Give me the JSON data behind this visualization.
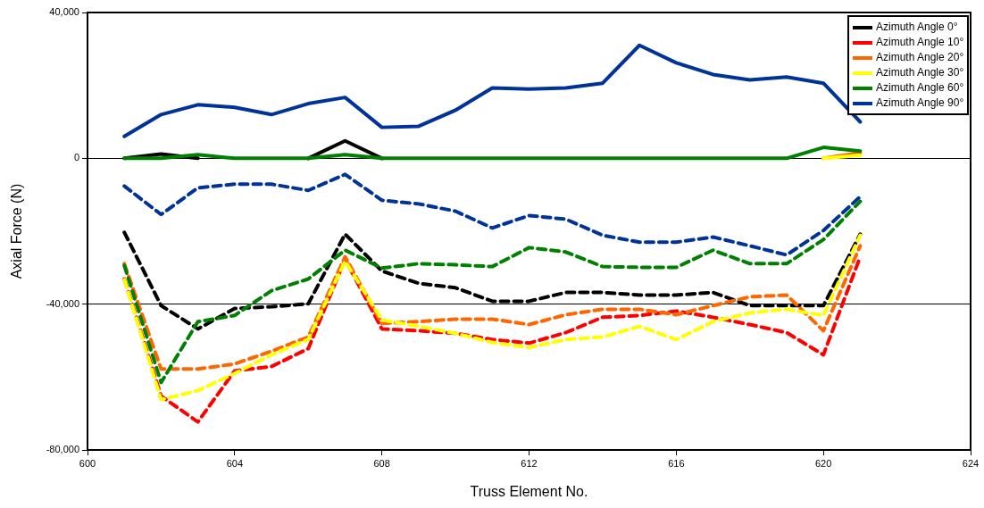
{
  "chart_data": {
    "type": "line",
    "xlabel": "Truss Element No.",
    "ylabel": "Axial Force (N)",
    "x": [
      601,
      602,
      603,
      604,
      605,
      606,
      607,
      608,
      609,
      610,
      611,
      612,
      613,
      614,
      615,
      616,
      617,
      618,
      619,
      620,
      621
    ],
    "xlim": [
      600,
      624
    ],
    "xticks": [
      600,
      604,
      608,
      612,
      616,
      620,
      624
    ],
    "ylim": [
      -80000,
      40000
    ],
    "yticks": [
      {
        "value": -80000,
        "label": "-80,000"
      },
      {
        "value": -40000,
        "label": "-40,000"
      },
      {
        "value": 0,
        "label": "0"
      },
      {
        "value": 40000,
        "label": "40,000"
      }
    ],
    "grid": "y",
    "legend": "top right",
    "marker": "none",
    "line_style": "solid",
    "series": [
      {
        "name": "Azimuth Angle 0°",
        "color": "#000000",
        "values": [
          0,
          1200,
          0,
          null,
          null,
          0,
          4800,
          0,
          null,
          null,
          null,
          null,
          null,
          null,
          null,
          null,
          null,
          null,
          null,
          null,
          null
        ]
      },
      {
        "name": "Azimuth Angle 10°",
        "color": "#ff0000",
        "values": [
          null,
          null,
          null,
          null,
          null,
          null,
          null,
          null,
          null,
          null,
          null,
          null,
          null,
          null,
          null,
          null,
          null,
          null,
          null,
          null,
          null
        ]
      },
      {
        "name": "Azimuth Angle 20°",
        "color": "#ff6600",
        "values": [
          null,
          null,
          null,
          null,
          null,
          null,
          null,
          null,
          null,
          null,
          null,
          null,
          null,
          null,
          null,
          null,
          null,
          null,
          null,
          0,
          1500
        ]
      },
      {
        "name": "Azimuth Angle 30°",
        "color": "#ffff00",
        "values": [
          null,
          null,
          null,
          null,
          null,
          null,
          null,
          null,
          null,
          null,
          null,
          null,
          null,
          null,
          null,
          null,
          null,
          null,
          null,
          0,
          800
        ]
      },
      {
        "name": "Azimuth Angle 60°",
        "color": "#008000",
        "values": [
          0,
          0,
          1000,
          0,
          0,
          0,
          1000,
          0,
          0,
          0,
          0,
          0,
          0,
          0,
          0,
          0,
          0,
          0,
          0,
          3000,
          2000
        ]
      },
      {
        "name": "Azimuth Angle 90°",
        "color": "#003399",
        "values": [
          6000,
          12000,
          14700,
          14000,
          12000,
          15000,
          16700,
          8500,
          8800,
          13200,
          19300,
          19000,
          19300,
          20600,
          31000,
          26200,
          23000,
          21500,
          22300,
          20600,
          10000
        ]
      },
      {
        "color": "#000000",
        "line_style": "dashed",
        "values": [
          -20300,
          -40400,
          -46800,
          -41200,
          -40700,
          -39900,
          -20800,
          -30900,
          -34300,
          -35500,
          -39200,
          -39200,
          -36800,
          -36800,
          -37500,
          -37500,
          -36800,
          -40400,
          -40400,
          -40400,
          -20800
        ]
      },
      {
        "color": "#ff0000",
        "line_style": "dashed",
        "values": [
          -33100,
          -65200,
          -72300,
          -58300,
          -57100,
          -52200,
          -27700,
          -46800,
          -47300,
          -48000,
          -49700,
          -50700,
          -47800,
          -43600,
          -43100,
          -41900,
          -43600,
          -45600,
          -47800,
          -53900,
          -27000
        ]
      },
      {
        "color": "#ff6600",
        "line_style": "dashed",
        "values": [
          -28900,
          -57800,
          -57800,
          -56400,
          -52900,
          -49000,
          -27000,
          -45300,
          -44800,
          -44100,
          -44100,
          -45600,
          -42900,
          -41400,
          -41400,
          -42900,
          -40400,
          -38000,
          -37500,
          -47300,
          -24000
        ]
      },
      {
        "color": "#ffff00",
        "line_style": "dashed",
        "values": [
          -33300,
          -66200,
          -63700,
          -59000,
          -53900,
          -49700,
          -28200,
          -44300,
          -46100,
          -48000,
          -50500,
          -51900,
          -49700,
          -49000,
          -46100,
          -49700,
          -44800,
          -42400,
          -41400,
          -43100,
          -21100
        ]
      },
      {
        "color": "#008000",
        "line_style": "dashed",
        "values": [
          -29400,
          -61500,
          -44800,
          -43100,
          -36300,
          -33100,
          -25200,
          -30100,
          -28900,
          -29200,
          -29700,
          -24500,
          -25700,
          -29700,
          -29900,
          -29900,
          -25200,
          -28900,
          -28900,
          -22300,
          -11800
        ]
      },
      {
        "color": "#003399",
        "line_style": "dashed",
        "values": [
          -7600,
          -15400,
          -8100,
          -7100,
          -7100,
          -8800,
          -4400,
          -11500,
          -12500,
          -14500,
          -19100,
          -15700,
          -16700,
          -21100,
          -23000,
          -23000,
          -21600,
          -24000,
          -26500,
          -19800,
          -10500
        ]
      }
    ]
  }
}
